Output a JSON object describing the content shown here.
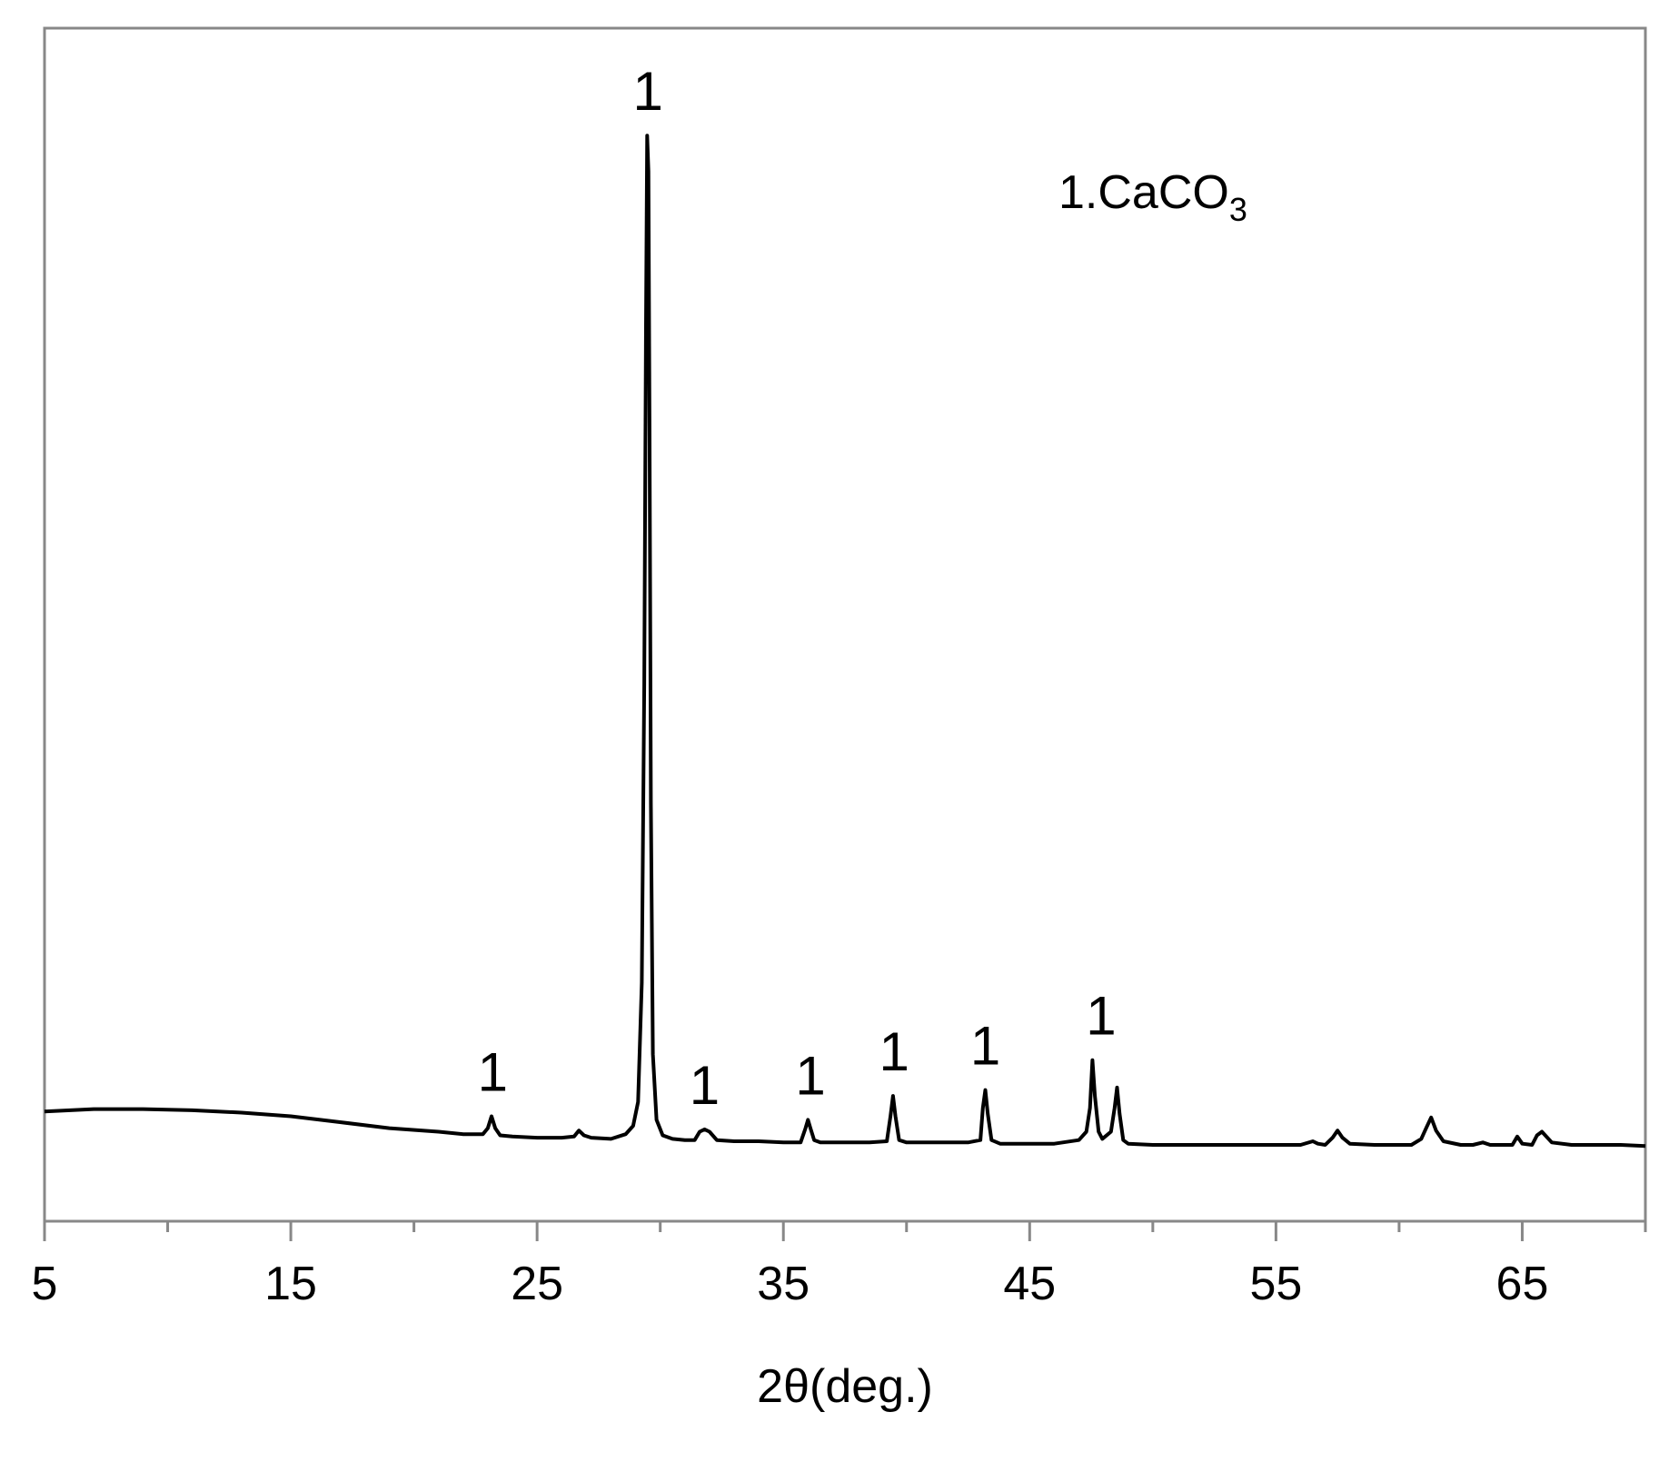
{
  "chart_data": {
    "type": "line",
    "xlabel": "2θ(deg.)",
    "ylabel": "",
    "xlim": [
      5,
      70
    ],
    "ylim": [
      0,
      100
    ],
    "xticks": [
      5,
      15,
      25,
      35,
      45,
      55,
      65
    ],
    "x_minor_step": 5,
    "grid": false,
    "legend_position": "top-right",
    "annotation": {
      "prefix": "1.CaCO",
      "subscript": "3"
    },
    "line_color": "#000000",
    "frame_color": "#888888",
    "series": [
      {
        "x": [
          5.0,
          7.0,
          9.0,
          11.0,
          13.0,
          15.0,
          17.0,
          19.0,
          21.0,
          22.0,
          22.8,
          23.0,
          23.15,
          23.3,
          23.5,
          24.0,
          25.0,
          26.0,
          26.5,
          26.7,
          26.9,
          27.2,
          28.0,
          28.6,
          28.9,
          29.1,
          29.25,
          29.35,
          29.42,
          29.47,
          29.52,
          29.57,
          29.62,
          29.7,
          29.85,
          30.1,
          30.5,
          31.0,
          31.4,
          31.6,
          31.8,
          32.0,
          32.3,
          33.0,
          34.0,
          35.0,
          35.7,
          35.9,
          36.0,
          36.1,
          36.25,
          36.5,
          37.5,
          38.5,
          39.2,
          39.35,
          39.45,
          39.55,
          39.7,
          40.0,
          41.0,
          42.5,
          43.0,
          43.1,
          43.2,
          43.3,
          43.45,
          43.8,
          45.0,
          46.0,
          47.0,
          47.3,
          47.45,
          47.55,
          47.65,
          47.8,
          47.95,
          48.3,
          48.45,
          48.55,
          48.65,
          48.8,
          49.0,
          50.0,
          52.0,
          54.0,
          56.0,
          56.5,
          56.7,
          57.0,
          57.3,
          57.5,
          57.7,
          58.0,
          59.0,
          60.5,
          60.9,
          61.1,
          61.3,
          61.5,
          61.8,
          62.5,
          63.0,
          63.4,
          63.7,
          64.0,
          64.6,
          64.8,
          65.0,
          65.4,
          65.6,
          65.8,
          66.2,
          67.0,
          68.0,
          69.0,
          70.0
        ],
        "y": [
          9.2,
          9.4,
          9.4,
          9.3,
          9.1,
          8.8,
          8.3,
          7.8,
          7.5,
          7.3,
          7.3,
          7.8,
          8.8,
          7.8,
          7.2,
          7.1,
          7.0,
          7.0,
          7.1,
          7.6,
          7.2,
          7.0,
          6.9,
          7.3,
          8.0,
          10.0,
          20.0,
          45.0,
          75.0,
          91.0,
          88.0,
          65.0,
          35.0,
          14.0,
          8.5,
          7.2,
          6.9,
          6.8,
          6.8,
          7.5,
          7.7,
          7.5,
          6.8,
          6.7,
          6.7,
          6.6,
          6.6,
          7.8,
          8.5,
          7.8,
          6.8,
          6.6,
          6.6,
          6.6,
          6.7,
          8.8,
          10.5,
          8.8,
          6.8,
          6.6,
          6.6,
          6.6,
          6.8,
          9.5,
          11.0,
          9.0,
          6.8,
          6.5,
          6.5,
          6.5,
          6.8,
          7.5,
          9.5,
          13.5,
          10.5,
          7.5,
          6.9,
          7.5,
          9.5,
          11.2,
          9.0,
          6.8,
          6.5,
          6.4,
          6.4,
          6.4,
          6.4,
          6.7,
          6.5,
          6.4,
          7.0,
          7.6,
          7.0,
          6.5,
          6.4,
          6.4,
          6.9,
          7.8,
          8.7,
          7.6,
          6.7,
          6.4,
          6.4,
          6.6,
          6.4,
          6.4,
          6.4,
          7.1,
          6.5,
          6.4,
          7.2,
          7.5,
          6.6,
          6.4,
          6.4,
          6.4,
          6.3
        ]
      }
    ],
    "peak_labels": [
      {
        "x": 23.2,
        "y": 8.8,
        "text": "1"
      },
      {
        "x": 29.5,
        "y": 91.0,
        "text": "1"
      },
      {
        "x": 31.8,
        "y": 7.7,
        "text": "1"
      },
      {
        "x": 36.1,
        "y": 8.5,
        "text": "1"
      },
      {
        "x": 39.5,
        "y": 10.5,
        "text": "1"
      },
      {
        "x": 43.2,
        "y": 11.0,
        "text": "1"
      },
      {
        "x": 47.9,
        "y": 13.5,
        "text": "1"
      }
    ]
  }
}
